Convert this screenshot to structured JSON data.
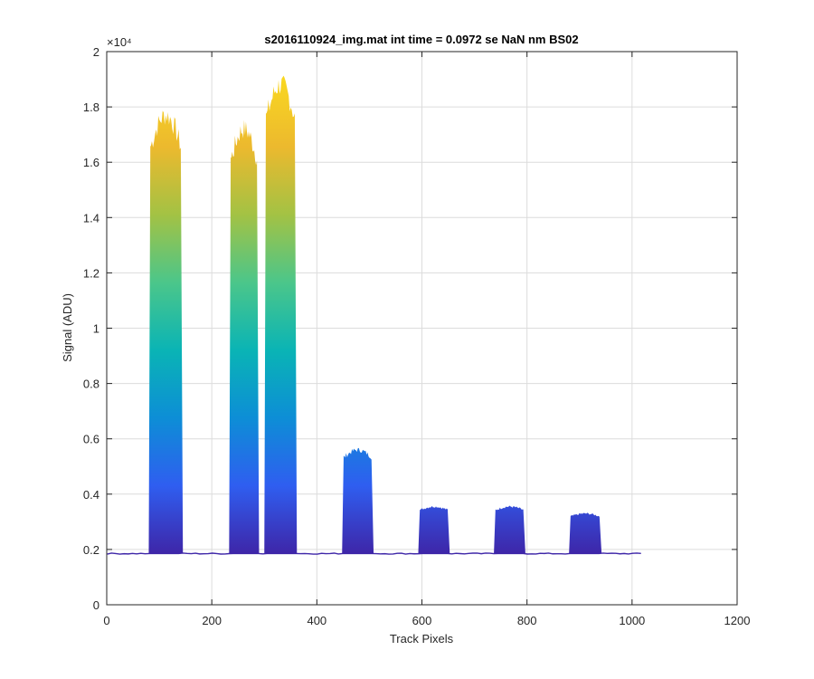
{
  "chart_data": {
    "type": "line",
    "title": "s2016110924_img.mat int time = 0.0972 se  NaN nm BS02",
    "xlabel": "Track Pixels",
    "ylabel": "Signal (ADU)",
    "xlim": [
      0,
      1200
    ],
    "ylim": [
      0,
      20000
    ],
    "x_ticks": [
      0,
      200,
      400,
      600,
      800,
      1000,
      1200
    ],
    "x_tick_labels": [
      "0",
      "200",
      "400",
      "600",
      "800",
      "1000",
      "1200"
    ],
    "y_ticks": [
      0,
      2000,
      4000,
      6000,
      8000,
      10000,
      12000,
      14000,
      16000,
      18000,
      20000
    ],
    "y_tick_labels": [
      "0",
      "0.2",
      "0.4",
      "0.6",
      "0.8",
      "1",
      "1.2",
      "1.4",
      "1.6",
      "1.8",
      "2"
    ],
    "y_exponent_label": "×10⁴",
    "grid": true,
    "baseline": 1850,
    "x_range": [
      1,
      1024
    ],
    "colormap": [
      "#3e26a8",
      "#2f5ef0",
      "#0d8ed6",
      "#0ab4b5",
      "#4bc68a",
      "#a3c244",
      "#ecb92e",
      "#f9d721"
    ],
    "peaks": [
      {
        "start": 80,
        "end": 145,
        "peak": 17700
      },
      {
        "start": 233,
        "end": 290,
        "peak": 17200
      },
      {
        "start": 300,
        "end": 362,
        "peak": 18800
      },
      {
        "start": 448,
        "end": 508,
        "peak": 5600
      },
      {
        "start": 593,
        "end": 653,
        "peak": 3550
      },
      {
        "start": 737,
        "end": 797,
        "peak": 3550
      },
      {
        "start": 880,
        "end": 942,
        "peak": 3300
      }
    ]
  }
}
